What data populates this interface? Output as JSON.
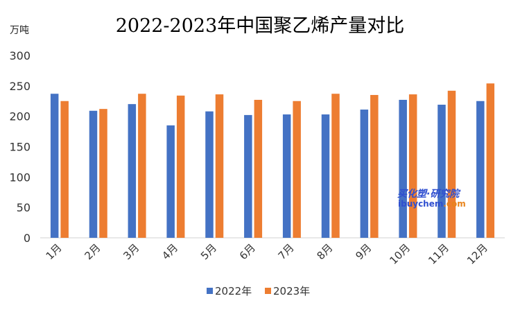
{
  "chart_data": {
    "type": "bar",
    "title": "2022-2023年中国聚乙烯产量对比",
    "ylabel": "万吨",
    "xlabel": "",
    "categories": [
      "1月",
      "2月",
      "3月",
      "4月",
      "5月",
      "6月",
      "7月",
      "8月",
      "9月",
      "10月",
      "11月",
      "12月"
    ],
    "series": [
      {
        "name": "2022年",
        "color": "#4472c4",
        "values": [
          237,
          209,
          220,
          185,
          208,
          202,
          203,
          203,
          211,
          227,
          219,
          225
        ]
      },
      {
        "name": "2023年",
        "color": "#ed7d31",
        "values": [
          225,
          212,
          237,
          234,
          236,
          227,
          225,
          237,
          235,
          236,
          242,
          254
        ]
      }
    ],
    "ylim": [
      0,
      300
    ],
    "yticks": [
      0,
      50,
      100,
      150,
      200,
      250,
      300
    ],
    "grid": false,
    "legend": "bottom"
  },
  "watermark": {
    "line1": "买化塑·研究院",
    "line2_blue": "ibuychem",
    "line2_orange": ".com"
  }
}
